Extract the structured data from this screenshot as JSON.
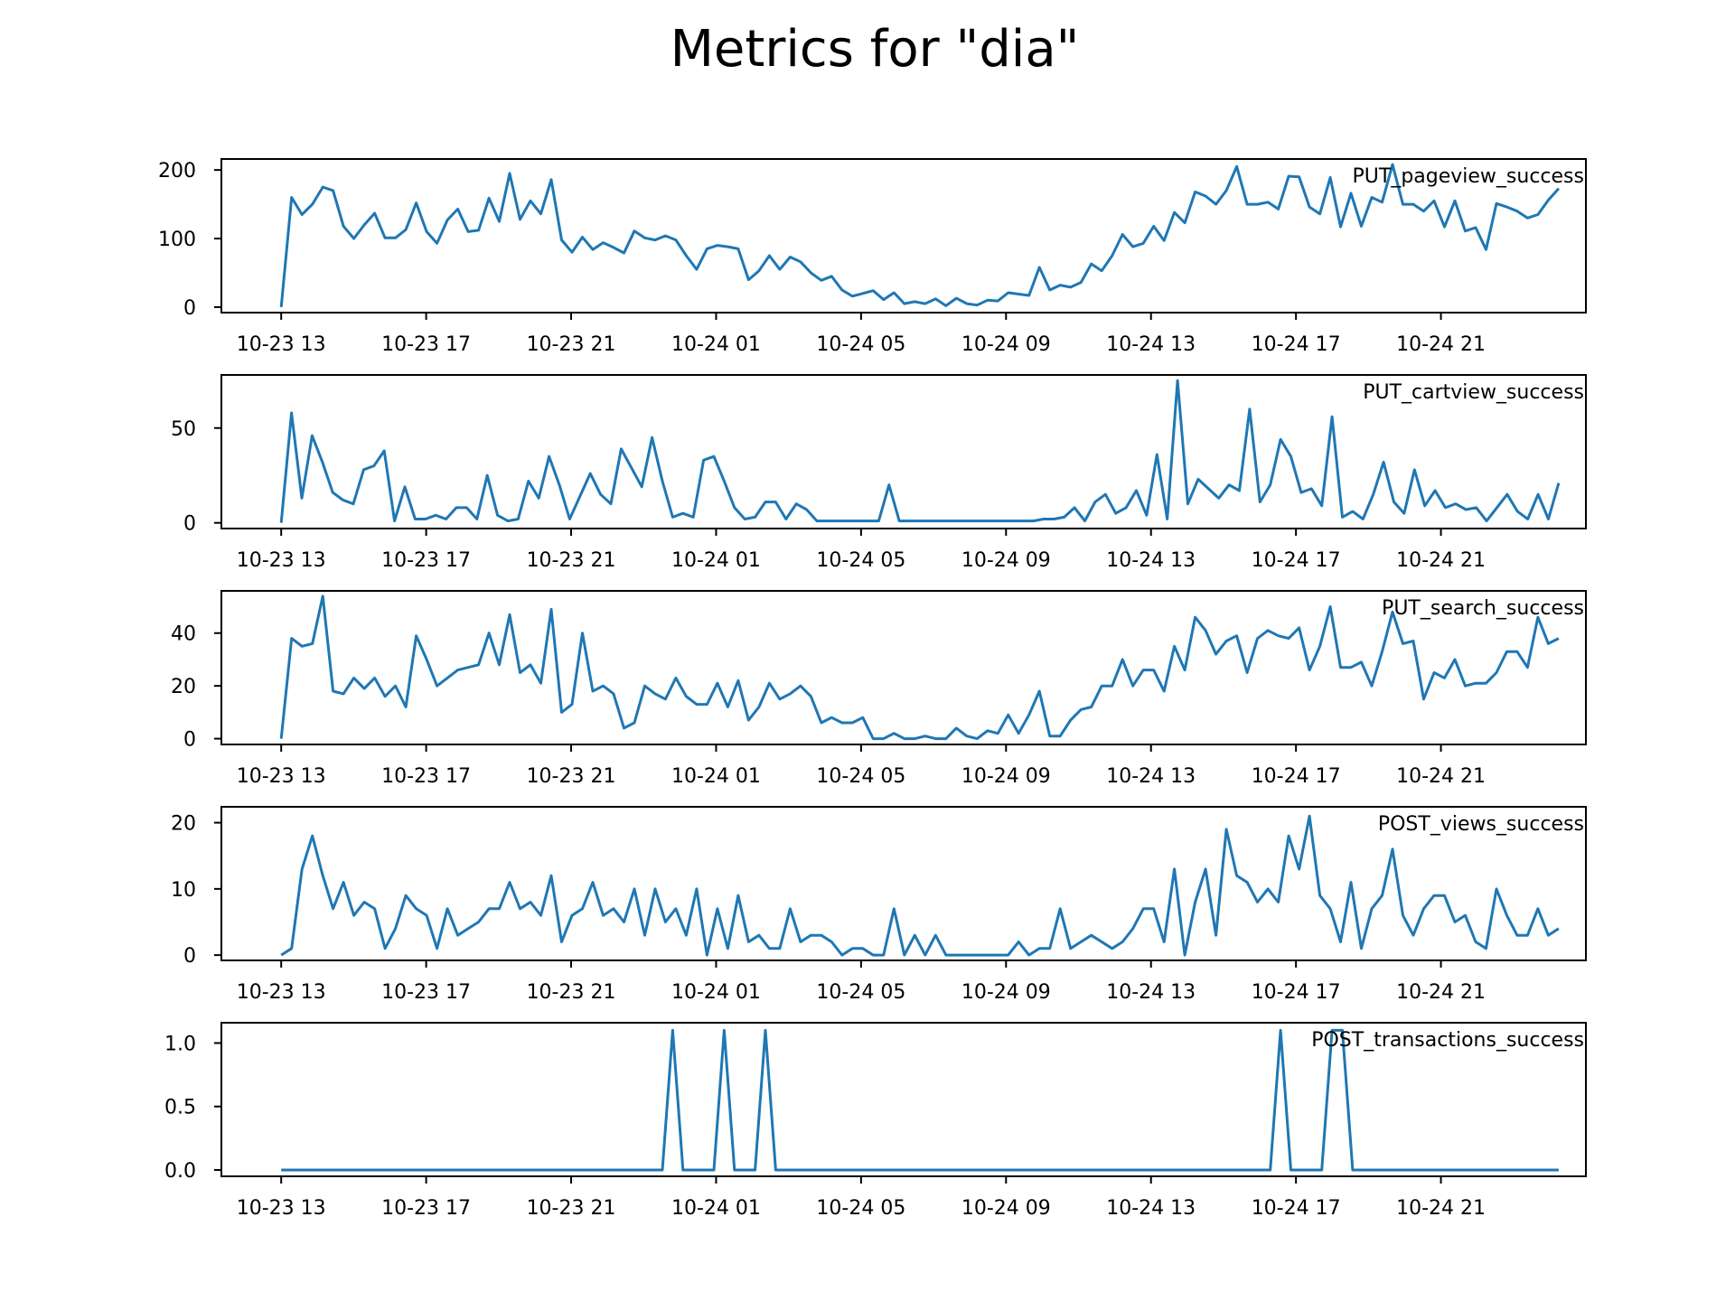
{
  "title": "Metrics for \"dia\"",
  "colors": {
    "line": "#1f77b4",
    "axes": "#000000",
    "background": "#ffffff"
  },
  "chart_data": [
    {
      "type": "line",
      "name": "PUT_pageview_success",
      "label": "PUT_pageview_success",
      "legend_position": "top-right",
      "grid": false,
      "x_tick_labels": [
        "10-23 13",
        "10-23 17",
        "10-23 21",
        "10-24 01",
        "10-24 05",
        "10-24 09",
        "10-24 13",
        "10-24 17",
        "10-24 21"
      ],
      "x_range_hours": [
        -1.65,
        36
      ],
      "ylim": [
        -8,
        216
      ],
      "y_ticks": [
        0,
        100,
        200
      ],
      "y_tick_labels": [
        "0",
        "100",
        "200"
      ],
      "values": [
        0,
        160,
        135,
        150,
        175,
        170,
        118,
        100,
        120,
        137,
        101,
        101,
        113,
        152,
        110,
        93,
        127,
        143,
        110,
        112,
        159,
        125,
        195,
        128,
        155,
        136,
        186,
        98,
        80,
        102,
        84,
        94,
        87,
        79,
        111,
        101,
        98,
        104,
        98,
        75,
        55,
        85,
        90,
        88,
        85,
        40,
        53,
        75,
        55,
        73,
        66,
        50,
        39,
        45,
        25,
        16,
        20,
        24,
        11,
        21,
        5,
        8,
        5,
        12,
        2,
        13,
        5,
        3,
        10,
        9,
        21,
        19,
        17,
        58,
        25,
        32,
        29,
        36,
        63,
        53,
        75,
        106,
        88,
        93,
        118,
        97,
        138,
        123,
        168,
        162,
        150,
        170,
        205,
        150,
        150,
        153,
        143,
        191,
        190,
        146,
        136,
        189,
        117,
        166,
        118,
        160,
        153,
        208,
        150,
        150,
        140,
        155,
        117,
        155,
        111,
        116,
        84,
        151,
        146,
        140,
        130,
        135,
        156,
        173
      ]
    },
    {
      "type": "line",
      "name": "PUT_cartview_success",
      "label": "PUT_cartview_success",
      "legend_position": "top-right",
      "grid": false,
      "x_tick_labels": [
        "10-23 13",
        "10-23 17",
        "10-23 21",
        "10-24 01",
        "10-24 05",
        "10-24 09",
        "10-24 13",
        "10-24 17",
        "10-24 21"
      ],
      "x_range_hours": [
        -1.65,
        36
      ],
      "ylim": [
        -3,
        78
      ],
      "y_ticks": [
        0,
        50
      ],
      "y_tick_labels": [
        "0",
        "50"
      ],
      "values": [
        0,
        58,
        13,
        46,
        32,
        16,
        12,
        10,
        28,
        30,
        38,
        1,
        19,
        2,
        2,
        4,
        2,
        8,
        8,
        2,
        25,
        4,
        1,
        2,
        22,
        13,
        35,
        20,
        2,
        14,
        26,
        15,
        10,
        39,
        29,
        19,
        45,
        22,
        3,
        5,
        3,
        33,
        35,
        22,
        8,
        2,
        3,
        11,
        11,
        2,
        10,
        7,
        1,
        1,
        1,
        1,
        1,
        1,
        1,
        20,
        1,
        1,
        1,
        1,
        1,
        1,
        1,
        1,
        1,
        1,
        1,
        1,
        1,
        1,
        2,
        2,
        3,
        8,
        1,
        11,
        15,
        5,
        8,
        17,
        4,
        36,
        2,
        75,
        10,
        23,
        18,
        13,
        20,
        17,
        60,
        11,
        20,
        44,
        35,
        16,
        18,
        9,
        56,
        3,
        6,
        2,
        15,
        32,
        11,
        5,
        28,
        9,
        17,
        8,
        10,
        7,
        8,
        1,
        8,
        15,
        6,
        2,
        15,
        2,
        21
      ]
    },
    {
      "type": "line",
      "name": "PUT_search_success",
      "label": "PUT_search_success",
      "legend_position": "top-right",
      "grid": false,
      "x_tick_labels": [
        "10-23 13",
        "10-23 17",
        "10-23 21",
        "10-24 01",
        "10-24 05",
        "10-24 09",
        "10-24 13",
        "10-24 17",
        "10-24 21"
      ],
      "x_range_hours": [
        -1.65,
        36
      ],
      "ylim": [
        -2.2,
        56
      ],
      "y_ticks": [
        0,
        20,
        40
      ],
      "y_tick_labels": [
        "0",
        "20",
        "40"
      ],
      "values": [
        0,
        38,
        35,
        36,
        54,
        18,
        17,
        23,
        19,
        23,
        16,
        20,
        12,
        39,
        30,
        20,
        23,
        26,
        27,
        28,
        40,
        28,
        47,
        25,
        28,
        21,
        49,
        10,
        13,
        40,
        18,
        20,
        17,
        4,
        6,
        20,
        17,
        15,
        23,
        16,
        13,
        13,
        21,
        12,
        22,
        7,
        12,
        21,
        15,
        17,
        20,
        16,
        6,
        8,
        6,
        6,
        8,
        0,
        0,
        2,
        0,
        0,
        1,
        0,
        0,
        4,
        1,
        0,
        3,
        2,
        9,
        2,
        9,
        18,
        1,
        1,
        7,
        11,
        12,
        20,
        20,
        30,
        20,
        26,
        26,
        18,
        35,
        26,
        46,
        41,
        32,
        37,
        39,
        25,
        38,
        41,
        39,
        38,
        42,
        26,
        35,
        50,
        27,
        27,
        29,
        20,
        33,
        48,
        36,
        37,
        15,
        25,
        23,
        30,
        20,
        21,
        21,
        25,
        33,
        33,
        27,
        46,
        36,
        38
      ]
    },
    {
      "type": "line",
      "name": "POST_views_success",
      "label": "POST_views_success",
      "legend_position": "top-right",
      "grid": false,
      "x_tick_labels": [
        "10-23 13",
        "10-23 17",
        "10-23 21",
        "10-24 01",
        "10-24 05",
        "10-24 09",
        "10-24 13",
        "10-24 17",
        "10-24 21"
      ],
      "x_range_hours": [
        -1.65,
        36
      ],
      "ylim": [
        -0.8,
        22.4
      ],
      "y_ticks": [
        0,
        10,
        20
      ],
      "y_tick_labels": [
        "0",
        "10",
        "20"
      ],
      "values": [
        0,
        1,
        13,
        18,
        12,
        7,
        11,
        6,
        8,
        7,
        1,
        4,
        9,
        7,
        6,
        1,
        7,
        3,
        4,
        5,
        7,
        7,
        11,
        7,
        8,
        6,
        12,
        2,
        6,
        7,
        11,
        6,
        7,
        5,
        10,
        3,
        10,
        5,
        7,
        3,
        10,
        0,
        7,
        1,
        9,
        2,
        3,
        1,
        1,
        7,
        2,
        3,
        3,
        2,
        0,
        1,
        1,
        0,
        0,
        7,
        0,
        3,
        0,
        3,
        0,
        0,
        0,
        0,
        0,
        0,
        0,
        2,
        0,
        1,
        1,
        7,
        1,
        2,
        3,
        2,
        1,
        2,
        4,
        7,
        7,
        2,
        13,
        0,
        8,
        13,
        3,
        19,
        12,
        11,
        8,
        10,
        8,
        18,
        13,
        21,
        9,
        7,
        2,
        11,
        1,
        7,
        9,
        16,
        6,
        3,
        7,
        9,
        9,
        5,
        6,
        2,
        1,
        10,
        6,
        3,
        3,
        7,
        3,
        4
      ]
    },
    {
      "type": "line",
      "name": "POST_transactions_success",
      "label": "POST_transactions_success",
      "legend_position": "top-right",
      "grid": false,
      "x_tick_labels": [
        "10-23 13",
        "10-23 17",
        "10-23 21",
        "10-24 01",
        "10-24 05",
        "10-24 09",
        "10-24 13",
        "10-24 17",
        "10-24 21"
      ],
      "x_range_hours": [
        -1.65,
        36
      ],
      "ylim": [
        -0.05,
        1.16
      ],
      "y_ticks": [
        0,
        0.5,
        1.0
      ],
      "y_tick_labels": [
        "0.0",
        "0.5",
        "1.0"
      ],
      "values": [
        0,
        0,
        0,
        0,
        0,
        0,
        0,
        0,
        0,
        0,
        0,
        0,
        0,
        0,
        0,
        0,
        0,
        0,
        0,
        0,
        0,
        0,
        0,
        0,
        0,
        0,
        0,
        0,
        0,
        0,
        0,
        0,
        0,
        0,
        0,
        0,
        0,
        0,
        1.1,
        0,
        0,
        0,
        0,
        1.1,
        0,
        0,
        0,
        1.1,
        0,
        0,
        0,
        0,
        0,
        0,
        0,
        0,
        0,
        0,
        0,
        0,
        0,
        0,
        0,
        0,
        0,
        0,
        0,
        0,
        0,
        0,
        0,
        0,
        0,
        0,
        0,
        0,
        0,
        0,
        0,
        0,
        0,
        0,
        0,
        0,
        0,
        0,
        0,
        0,
        0,
        0,
        0,
        0,
        0,
        0,
        0,
        0,
        0,
        1.1,
        0,
        0,
        0,
        0,
        1.1,
        1.1,
        0,
        0,
        0,
        0,
        0,
        0,
        0,
        0,
        0,
        0,
        0,
        0,
        0,
        0,
        0,
        0,
        0,
        0,
        0,
        0,
        0
      ]
    }
  ]
}
